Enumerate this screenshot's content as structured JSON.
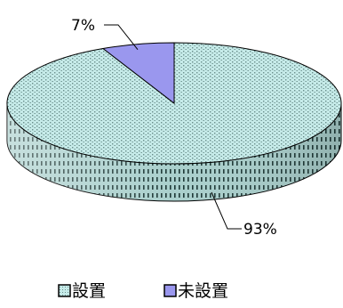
{
  "chart_data": {
    "type": "pie",
    "style": "3d",
    "categories": [
      "設置",
      "未設置"
    ],
    "values": [
      93,
      7
    ],
    "labels": [
      "93%",
      "7%"
    ],
    "colors": {
      "設置": "#c3e8e6",
      "設置_pattern": "dotted",
      "未設置": "#9a97ee"
    },
    "legend": {
      "position": "bottom",
      "items": [
        "設置",
        "未設置"
      ]
    },
    "title": ""
  }
}
